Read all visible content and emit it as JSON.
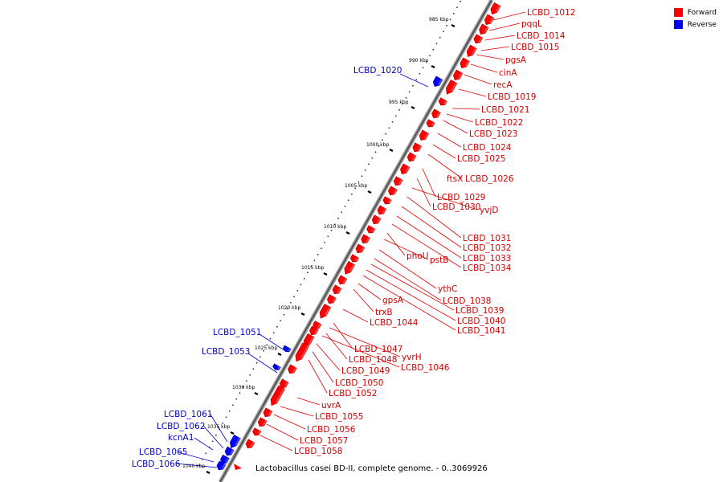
{
  "legend": {
    "forward_label": "Forward",
    "forward_color": "#ff0000",
    "reverse_label": "Reverse",
    "reverse_color": "#0000ff"
  },
  "caption": "Lactobacillus casei BD-II, complete genome. - 0..3069926",
  "ticks": [
    {
      "label": "985 kbp",
      "pos_kbp": 985
    },
    {
      "label": "990 kbp",
      "pos_kbp": 990
    },
    {
      "label": "995 kbp",
      "pos_kbp": 995
    },
    {
      "label": "1000 kbp",
      "pos_kbp": 1000
    },
    {
      "label": "1005 kbp",
      "pos_kbp": 1005
    },
    {
      "label": "1010 kbp",
      "pos_kbp": 1010
    },
    {
      "label": "1015 kbp",
      "pos_kbp": 1015
    },
    {
      "label": "1020 kbp",
      "pos_kbp": 1020
    },
    {
      "label": "1025 kbp",
      "pos_kbp": 1025
    },
    {
      "label": "1030 kbp",
      "pos_kbp": 1030
    },
    {
      "label": "1035 kbp",
      "pos_kbp": 1035
    },
    {
      "label": "1040 kbp",
      "pos_kbp": 1040
    }
  ],
  "forward_genes": [
    "LCBD_1012",
    "pqqL",
    "LCBD_1014",
    "LCBD_1015",
    "pgsA",
    "cinA",
    "recA",
    "LCBD_1019",
    "LCBD_1021",
    "LCBD_1022",
    "LCBD_1023",
    "LCBD_1024",
    "LCBD_1025",
    "ftsX",
    "LCBD_1026",
    "LCBD_1029",
    "LCBD_1030",
    "yvjD",
    "LCBD_1031",
    "LCBD_1032",
    "LCBD_1033",
    "LCBD_1034",
    "phoU",
    "pstB",
    "ythC",
    "LCBD_1038",
    "LCBD_1039",
    "LCBD_1040",
    "LCBD_1041",
    "gpsA",
    "trxB",
    "LCBD_1044",
    "LCBD_1047",
    "yvrH",
    "LCBD_1048",
    "LCBD_1046",
    "LCBD_1049",
    "LCBD_1050",
    "LCBD_1052",
    "uvrA",
    "LCBD_1055",
    "LCBD_1056",
    "LCBD_1057",
    "LCBD_1058"
  ],
  "reverse_genes": [
    "LCBD_1020",
    "LCBD_1051",
    "LCBD_1053",
    "LCBD_1061",
    "LCBD_1062",
    "kcnA1",
    "LCBD_1065",
    "LCBD_1066"
  ]
}
